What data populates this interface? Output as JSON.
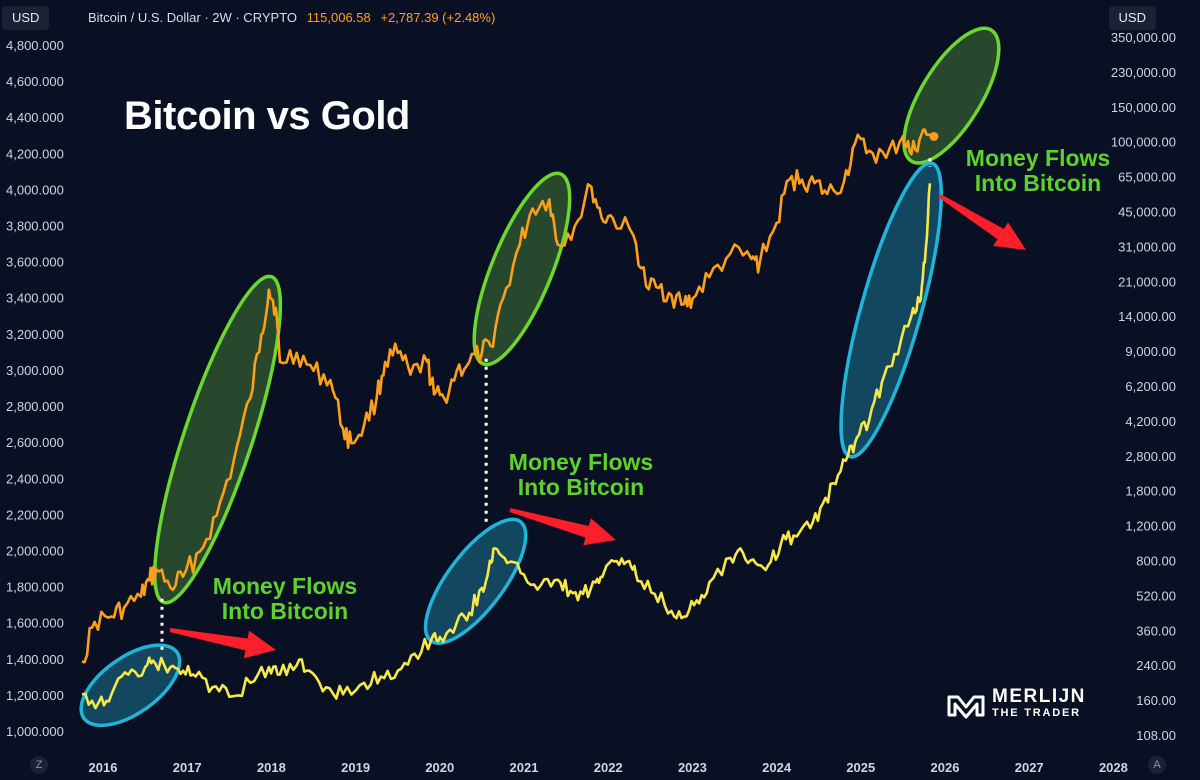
{
  "header": {
    "currency_left": "USD",
    "currency_right": "USD",
    "symbol": "Bitcoin / U.S. Dollar · 2W · CRYPTO",
    "price": "115,006.58",
    "change": "+2,787.39 (+2.48%)"
  },
  "annotations": {
    "title": "Bitcoin vs Gold",
    "flow_notes": [
      "Money Flows\nInto Bitcoin",
      "Money Flows\nInto Bitcoin",
      "Money Flows\nInto Bitcoin"
    ]
  },
  "logo": {
    "line1": "MERLIJN",
    "line2": "THE TRADER"
  },
  "corner_buttons": {
    "left": "Z",
    "right": "A"
  },
  "colors": {
    "background": "#0a1023",
    "gold_line": "#ff9f1a",
    "bitcoin_line": "#f7e84a",
    "green_ellipse": "#6bd72f",
    "blue_ellipse": "#21b4d9",
    "arrow": "#ff1f2a",
    "note_text": "#5cd32c"
  },
  "chart_data": {
    "type": "line",
    "x_ticks": [
      "2016",
      "2017",
      "2018",
      "2019",
      "2020",
      "2021",
      "2022",
      "2023",
      "2024",
      "2025",
      "2026",
      "2027",
      "2028"
    ],
    "left_axis": {
      "ticks": [
        "4,800.000",
        "4,600.000",
        "4,400.000",
        "4,200.000",
        "4,000.000",
        "3,800.000",
        "3,600.000",
        "3,400.000",
        "3,200.000",
        "3,000.000",
        "2,800.000",
        "2,600.000",
        "2,400.000",
        "2,200.000",
        "2,000.000",
        "1,800.000",
        "1,600.000",
        "1,400.000",
        "1,200.000",
        "1,000.000"
      ],
      "range": [
        1000,
        4800
      ]
    },
    "right_axis": {
      "scale": "log",
      "ticks": [
        "350,000.00",
        "230,000.00",
        "150,000.00",
        "100,000.00",
        "65,000.00",
        "45,000.00",
        "31,000.00",
        "21,000.00",
        "14,000.00",
        "9,000.00",
        "6,200.00",
        "4,200.00",
        "2,800.00",
        "1,800.00",
        "1,200.00",
        "800.00",
        "520.00",
        "360.00",
        "240.00",
        "160.00",
        "108.00"
      ],
      "range": [
        108,
        350000
      ]
    },
    "series": [
      {
        "axis": "left",
        "points": [
          [
            2015.75,
            1390
          ],
          [
            2015.9,
            1610
          ],
          [
            2016.1,
            1640
          ],
          [
            2016.25,
            1690
          ],
          [
            2016.45,
            1750
          ],
          [
            2016.55,
            1840
          ],
          [
            2016.63,
            1900
          ],
          [
            2016.8,
            1800
          ],
          [
            2016.95,
            1860
          ],
          [
            2017.15,
            2000
          ],
          [
            2017.35,
            2200
          ],
          [
            2017.55,
            2500
          ],
          [
            2017.75,
            2850
          ],
          [
            2017.88,
            3200
          ],
          [
            2017.97,
            3450
          ],
          [
            2018.05,
            3350
          ],
          [
            2018.1,
            3050
          ],
          [
            2018.3,
            3100
          ],
          [
            2018.5,
            3000
          ],
          [
            2018.7,
            2950
          ],
          [
            2018.85,
            2680
          ],
          [
            2018.95,
            2600
          ],
          [
            2019.1,
            2700
          ],
          [
            2019.25,
            2850
          ],
          [
            2019.35,
            3050
          ],
          [
            2019.5,
            3100
          ],
          [
            2019.65,
            2980
          ],
          [
            2019.85,
            3050
          ],
          [
            2019.93,
            2870
          ],
          [
            2020.05,
            2850
          ],
          [
            2020.2,
            3000
          ],
          [
            2020.35,
            3050
          ],
          [
            2020.5,
            3100
          ],
          [
            2020.6,
            3140
          ],
          [
            2020.75,
            3400
          ],
          [
            2020.95,
            3700
          ],
          [
            2021.1,
            3900
          ],
          [
            2021.3,
            3950
          ],
          [
            2021.4,
            3700
          ],
          [
            2021.6,
            3800
          ],
          [
            2021.8,
            4020
          ],
          [
            2021.92,
            3850
          ],
          [
            2022.05,
            3850
          ],
          [
            2022.3,
            3750
          ],
          [
            2022.45,
            3470
          ],
          [
            2022.6,
            3460
          ],
          [
            2022.75,
            3420
          ],
          [
            2022.9,
            3370
          ],
          [
            2023.0,
            3400
          ],
          [
            2023.2,
            3520
          ],
          [
            2023.45,
            3650
          ],
          [
            2023.7,
            3620
          ],
          [
            2023.8,
            3600
          ],
          [
            2024.0,
            3820
          ],
          [
            2024.15,
            4060
          ],
          [
            2024.3,
            4060
          ],
          [
            2024.45,
            4040
          ],
          [
            2024.6,
            3980
          ],
          [
            2024.8,
            4050
          ],
          [
            2024.93,
            4260
          ],
          [
            2025.1,
            4220
          ],
          [
            2025.3,
            4180
          ],
          [
            2025.5,
            4300
          ],
          [
            2025.6,
            4200
          ],
          [
            2025.72,
            4310
          ],
          [
            2025.82,
            4310
          ]
        ]
      },
      {
        "axis": "right",
        "points": [
          [
            2015.75,
            175
          ],
          [
            2015.95,
            160
          ],
          [
            2016.1,
            175
          ],
          [
            2016.3,
            220
          ],
          [
            2016.5,
            240
          ],
          [
            2016.62,
            250
          ],
          [
            2016.8,
            240
          ],
          [
            2016.95,
            230
          ],
          [
            2017.1,
            215
          ],
          [
            2017.3,
            190
          ],
          [
            2017.5,
            170
          ],
          [
            2017.75,
            200
          ],
          [
            2017.97,
            240
          ],
          [
            2018.1,
            220
          ],
          [
            2018.3,
            245
          ],
          [
            2018.45,
            230
          ],
          [
            2018.65,
            190
          ],
          [
            2018.85,
            175
          ],
          [
            2019.1,
            200
          ],
          [
            2019.3,
            215
          ],
          [
            2019.5,
            230
          ],
          [
            2019.7,
            280
          ],
          [
            2019.9,
            330
          ],
          [
            2020.0,
            340
          ],
          [
            2020.2,
            400
          ],
          [
            2020.35,
            450
          ],
          [
            2020.5,
            600
          ],
          [
            2020.58,
            750
          ],
          [
            2020.65,
            950
          ],
          [
            2020.8,
            800
          ],
          [
            2021.0,
            700
          ],
          [
            2021.2,
            620
          ],
          [
            2021.4,
            660
          ],
          [
            2021.55,
            580
          ],
          [
            2021.7,
            560
          ],
          [
            2021.85,
            640
          ],
          [
            2021.95,
            720
          ],
          [
            2022.1,
            820
          ],
          [
            2022.25,
            820
          ],
          [
            2022.35,
            650
          ],
          [
            2022.55,
            560
          ],
          [
            2022.75,
            460
          ],
          [
            2022.9,
            430
          ],
          [
            2023.05,
            520
          ],
          [
            2023.2,
            640
          ],
          [
            2023.45,
            850
          ],
          [
            2023.6,
            900
          ],
          [
            2023.75,
            800
          ],
          [
            2023.9,
            780
          ],
          [
            2024.05,
            1000
          ],
          [
            2024.2,
            1100
          ],
          [
            2024.4,
            1200
          ],
          [
            2024.55,
            1600
          ],
          [
            2024.7,
            2000
          ],
          [
            2024.85,
            2800
          ],
          [
            2024.95,
            3400
          ],
          [
            2025.1,
            4200
          ],
          [
            2025.25,
            6500
          ],
          [
            2025.4,
            9000
          ],
          [
            2025.6,
            14000
          ],
          [
            2025.7,
            16500
          ],
          [
            2025.76,
            26000
          ],
          [
            2025.82,
            65000
          ]
        ]
      }
    ],
    "highlight_ellipses": [
      {
        "color": "green",
        "x": [
          2016.75,
          2017.97
        ],
        "left_y": [
          1760,
          3480
        ]
      },
      {
        "color": "green",
        "x": [
          2020.55,
          2021.4
        ],
        "left_y": [
          3080,
          4050
        ]
      },
      {
        "color": "green",
        "x": [
          2025.65,
          2026.5
        ],
        "left_y": [
          4200,
          4850
        ]
      },
      {
        "color": "blue",
        "x": [
          2015.85,
          2016.8
        ],
        "right_y": [
          140,
          270
        ]
      },
      {
        "color": "blue",
        "x": [
          2019.95,
          2020.9
        ],
        "right_y": [
          350,
          1200
        ]
      },
      {
        "color": "blue",
        "x": [
          2024.9,
          2025.82
        ],
        "right_y": [
          3000,
          75000
        ]
      }
    ],
    "connector_lines": [
      {
        "x": 2016.7,
        "left_y": 1760,
        "right_y": 265
      },
      {
        "x": 2020.55,
        "left_y": 3090,
        "right_y": 1180
      },
      {
        "x": 2025.82,
        "left_y": 4200,
        "right_y": 75000
      }
    ]
  }
}
